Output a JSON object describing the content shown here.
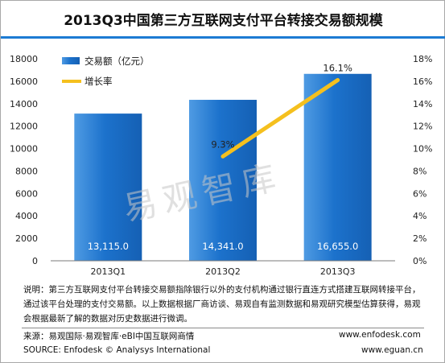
{
  "title": "2013Q3中国第三方互联网支付平台转接交易额规模",
  "watermark": "易观智库",
  "chart_data": {
    "type": "bar",
    "categories": [
      "2013Q1",
      "2013Q2",
      "2013Q3"
    ],
    "series": [
      {
        "name": "交易额（亿元）",
        "values": [
          13115.0,
          14341.0,
          16655.0
        ],
        "labels": [
          "13,115.0",
          "14,341.0",
          "16,655.0"
        ],
        "axis": "left",
        "color": "#1a6fc9"
      },
      {
        "name": "增长率",
        "values": [
          null,
          9.3,
          16.1
        ],
        "labels": [
          null,
          "9.3%",
          "16.1%"
        ],
        "axis": "right",
        "color": "#f5c01e"
      }
    ],
    "ylim": [
      0,
      18000
    ],
    "y_ticks": [
      "0",
      "2000",
      "4000",
      "6000",
      "8000",
      "10000",
      "12000",
      "14000",
      "16000",
      "18000"
    ],
    "y2lim": [
      0,
      18
    ],
    "y2_ticks": [
      "0%",
      "2%",
      "4%",
      "6%",
      "8%",
      "10%",
      "12%",
      "14%",
      "16%",
      "18%"
    ],
    "legend_position": "top-left",
    "grid": false
  },
  "note": "说明：第三方互联网支付平台转接交易额指除银行以外的支付机构通过银行直连方式搭建互联网转接平台，通过该平台处理的支付交易额。以上数据根据厂商访谈、易观自有监测数据和易观研究模型估算获得，易观会根据最新了解的数据对历史数据进行微调。",
  "footer": {
    "source_cn": "来源：易观国际·易观智库·eBI中国互联网商情",
    "source_en": "SOURCE: Enfodesk © Analysys International",
    "site1": "www.enfodesk.com",
    "site2": "www.eguan.cn"
  }
}
